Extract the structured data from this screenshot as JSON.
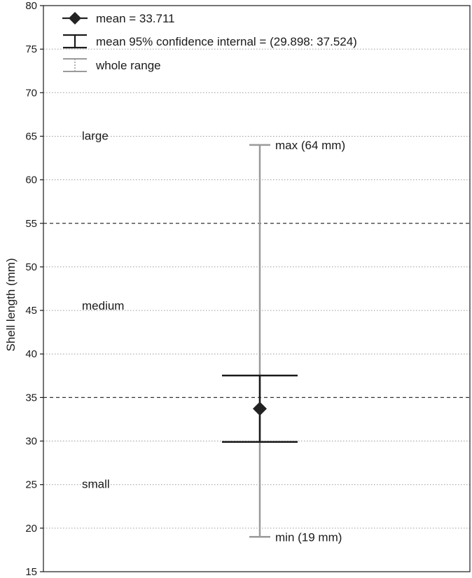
{
  "chart_data": {
    "type": "errorbar",
    "ylabel": "Shell length (mm)",
    "xlabel": "",
    "title": "",
    "ylim": [
      15,
      80
    ],
    "yticks": [
      15,
      20,
      25,
      30,
      35,
      40,
      45,
      50,
      55,
      60,
      65,
      70,
      75,
      80
    ],
    "grid": "horizontal dotted",
    "mean": 33.711,
    "ci_low": 29.898,
    "ci_high": 37.524,
    "min": 19,
    "max": 64,
    "min_label": "min (19 mm)",
    "max_label": "max (64 mm)",
    "class_thresholds": [
      35,
      55
    ],
    "class_labels": [
      {
        "label": "large",
        "y": 65
      },
      {
        "label": "medium",
        "y": 45.5
      },
      {
        "label": "small",
        "y": 25
      }
    ],
    "legend": {
      "placement": "top-left",
      "items": [
        {
          "symbol": "diamond",
          "label": "mean = 33.711"
        },
        {
          "symbol": "ci-bar",
          "label": "mean 95% confidence internal = (29.898: 37.524)"
        },
        {
          "symbol": "range-bar",
          "label": "whole range"
        }
      ]
    },
    "colors": {
      "mean": "#222222",
      "ci": "#1a1a1a",
      "range": "#9a9a9a",
      "grid": "#9a9a9a",
      "threshold": "#333333",
      "axis": "#1a1a1a",
      "text": "#1a1a1a"
    }
  }
}
